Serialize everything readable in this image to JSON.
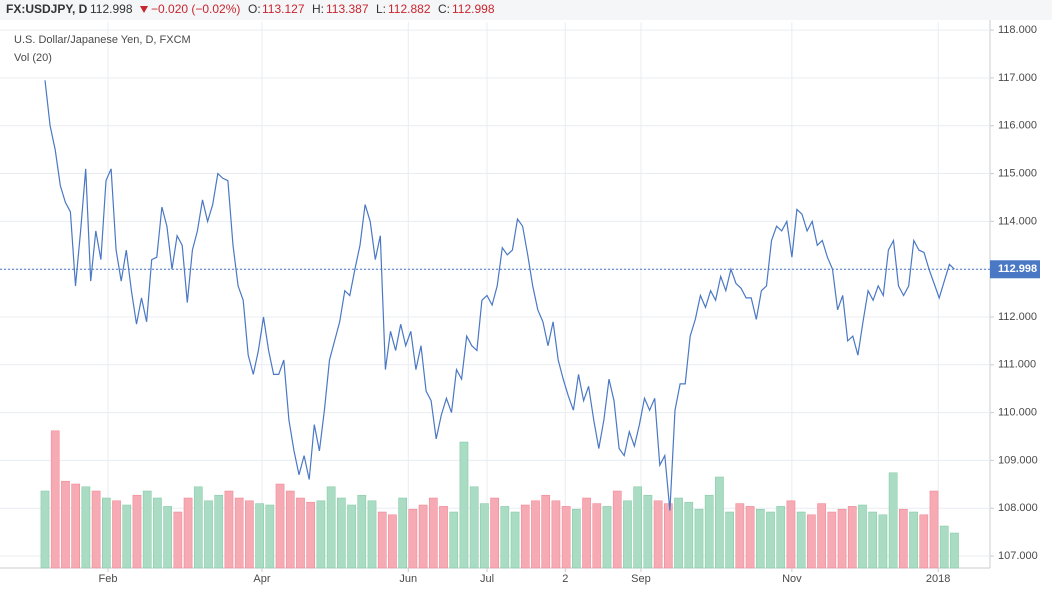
{
  "header": {
    "symbol": "FX:USDJPY, D",
    "last": "112.998",
    "change": "−0.020 (−0.02%)",
    "open_label": "O:",
    "open": "113.127",
    "high_label": "H:",
    "high": "113.387",
    "low_label": "L:",
    "low": "112.882",
    "close_label": "C:",
    "close": "112.998"
  },
  "chart_data": {
    "type": "line",
    "title": "U.S. Dollar/Japanese Yen, D, FXCM",
    "color": "#4a78c4",
    "values": [
      116.95,
      116.0,
      115.5,
      114.75,
      114.4,
      114.2,
      112.65,
      113.8,
      115.1,
      112.75,
      113.8,
      113.2,
      114.85,
      115.1,
      113.4,
      112.75,
      113.4,
      112.55,
      111.85,
      112.4,
      111.9,
      113.2,
      113.25,
      114.3,
      113.9,
      113.0,
      113.7,
      113.5,
      112.3,
      113.4,
      113.8,
      114.45,
      114.0,
      114.35,
      115.0,
      114.9,
      114.85,
      113.5,
      112.65,
      112.35,
      111.2,
      110.8,
      111.3,
      112.0,
      111.3,
      110.8,
      110.8,
      111.1,
      109.85,
      109.2,
      108.7,
      109.1,
      108.6,
      109.75,
      109.2,
      110.05,
      111.1,
      111.5,
      111.9,
      112.55,
      112.45,
      113.0,
      113.5,
      114.35,
      114.0,
      113.2,
      113.7,
      110.9,
      111.7,
      111.3,
      111.85,
      111.4,
      111.7,
      110.9,
      111.4,
      110.45,
      110.25,
      109.45,
      109.95,
      110.3,
      110.0,
      110.9,
      110.7,
      111.6,
      111.4,
      111.3,
      112.35,
      112.45,
      112.25,
      112.65,
      113.45,
      113.3,
      113.4,
      114.05,
      113.9,
      113.3,
      112.65,
      112.15,
      111.9,
      111.4,
      111.9,
      111.1,
      110.7,
      110.35,
      110.05,
      110.8,
      110.25,
      110.55,
      109.85,
      109.25,
      109.85,
      110.7,
      110.25,
      109.25,
      109.1,
      109.6,
      109.3,
      109.75,
      110.3,
      110.05,
      110.3,
      108.9,
      109.1,
      107.95,
      110.05,
      110.6,
      110.6,
      111.6,
      111.95,
      112.45,
      112.2,
      112.55,
      112.35,
      112.85,
      112.55,
      113.0,
      112.7,
      112.6,
      112.4,
      112.4,
      111.95,
      112.55,
      112.65,
      113.6,
      113.9,
      113.8,
      114.0,
      113.25,
      114.25,
      114.15,
      113.8,
      114.0,
      113.5,
      113.6,
      113.25,
      113.0,
      112.15,
      112.45,
      111.5,
      111.6,
      111.2,
      111.9,
      112.55,
      112.35,
      112.65,
      112.45,
      113.4,
      113.6,
      112.65,
      112.45,
      112.65,
      113.6,
      113.4,
      113.35,
      113.0,
      112.7,
      112.4,
      112.75,
      113.1,
      113.0
    ],
    "xlim": [
      -8.86,
      186.0
    ],
    "xticks": [
      {
        "value": 12.4,
        "label": "Feb"
      },
      {
        "value": 42.7,
        "label": "Apr"
      },
      {
        "value": 71.5,
        "label": "Jun"
      },
      {
        "value": 87.0,
        "label": "Jul"
      },
      {
        "value": 102.4,
        "label": "2"
      },
      {
        "value": 117.3,
        "label": "Sep"
      },
      {
        "value": 147.0,
        "label": "Nov"
      },
      {
        "value": 175.8,
        "label": "2018"
      }
    ],
    "ylim": [
      106.75,
      118.17
    ],
    "yticks": [
      {
        "value": 107,
        "label": "107.000"
      },
      {
        "value": 108,
        "label": "108.000"
      },
      {
        "value": 109,
        "label": "109.000"
      },
      {
        "value": 110,
        "label": "110.000"
      },
      {
        "value": 111,
        "label": "111.000"
      },
      {
        "value": 112,
        "label": "112.000"
      },
      {
        "value": 113,
        "label": "113.000"
      },
      {
        "value": 114,
        "label": "114.000"
      },
      {
        "value": 115,
        "label": "115.000"
      },
      {
        "value": 116,
        "label": "116.000"
      },
      {
        "value": 117,
        "label": "117.000"
      },
      {
        "value": 118,
        "label": "118.000"
      }
    ],
    "grid": true,
    "last_price": {
      "value": 112.998,
      "label": "112.998"
    },
    "volume": {
      "type": "bar",
      "name": "Vol (20)",
      "up_color": "#a9dcc3",
      "down_color": "#f6aab3",
      "ylim": [
        0,
        390
      ],
      "values": [
        55,
        98,
        62,
        60,
        58,
        55,
        50,
        48,
        45,
        52,
        55,
        50,
        44,
        40,
        50,
        58,
        48,
        52,
        55,
        50,
        48,
        46,
        45,
        60,
        55,
        50,
        47,
        48,
        58,
        50,
        45,
        52,
        48,
        40,
        38,
        50,
        42,
        45,
        50,
        44,
        40,
        90,
        58,
        46,
        50,
        44,
        40,
        45,
        48,
        52,
        48,
        44,
        42,
        50,
        46,
        44,
        55,
        48,
        58,
        52,
        48,
        46,
        50,
        47,
        42,
        52,
        65,
        40,
        46,
        44,
        42,
        40,
        44,
        48,
        40,
        38,
        46,
        40,
        42,
        44,
        45,
        40,
        38,
        68,
        42,
        40,
        38,
        55,
        30,
        25
      ]
    }
  }
}
